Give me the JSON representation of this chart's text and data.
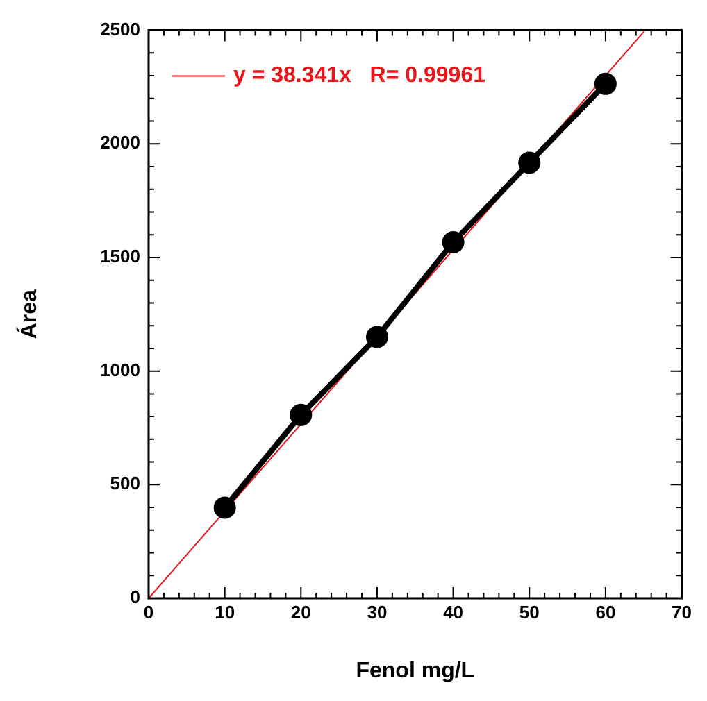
{
  "chart_data": {
    "type": "line",
    "xlabel": "Fenol mg/L",
    "ylabel": "Área",
    "x": [
      10,
      20,
      30,
      40,
      50,
      60
    ],
    "series": [
      {
        "values": [
          399,
          807,
          1150,
          1567,
          1917,
          2264
        ],
        "color": "#000000",
        "marker": "circle"
      },
      {
        "name": "y = 38.341x   R= 0.99961",
        "x": [
          0,
          65.2
        ],
        "values": [
          0,
          2500
        ],
        "color": "#e8161b",
        "marker": "none"
      }
    ],
    "xlim": [
      0,
      70
    ],
    "xticks": [
      0,
      {
        "value": 2,
        "label": null
      },
      {
        "value": 4,
        "label": null
      },
      {
        "value": 6,
        "label": null
      },
      {
        "value": 8,
        "label": null
      },
      10,
      {
        "value": 12,
        "label": null
      },
      {
        "value": 14,
        "label": null
      },
      {
        "value": 16,
        "label": null
      },
      {
        "value": 18,
        "label": null
      },
      20,
      {
        "value": 22,
        "label": null
      },
      {
        "value": 24,
        "label": null
      },
      {
        "value": 26,
        "label": null
      },
      {
        "value": 28,
        "label": null
      },
      30,
      {
        "value": 32,
        "label": null
      },
      {
        "value": 34,
        "label": null
      },
      {
        "value": 36,
        "label": null
      },
      {
        "value": 38,
        "label": null
      },
      40,
      {
        "value": 42,
        "label": null
      },
      {
        "value": 44,
        "label": null
      },
      {
        "value": 46,
        "label": null
      },
      {
        "value": 48,
        "label": null
      },
      50,
      {
        "value": 52,
        "label": null
      },
      {
        "value": 54,
        "label": null
      },
      {
        "value": 56,
        "label": null
      },
      {
        "value": 58,
        "label": null
      },
      60,
      {
        "value": 62,
        "label": null
      },
      {
        "value": 64,
        "label": null
      },
      {
        "value": 66,
        "label": null
      },
      {
        "value": 68,
        "label": null
      },
      70
    ],
    "ylim": [
      0,
      2500
    ],
    "yticks": [
      0,
      {
        "value": 100,
        "label": null
      },
      {
        "value": 200,
        "label": null
      },
      {
        "value": 300,
        "label": null
      },
      {
        "value": 400,
        "label": null
      },
      500,
      {
        "value": 600,
        "label": null
      },
      {
        "value": 700,
        "label": null
      },
      {
        "value": 800,
        "label": null
      },
      {
        "value": 900,
        "label": null
      },
      1000,
      {
        "value": 1100,
        "label": null
      },
      {
        "value": 1200,
        "label": null
      },
      {
        "value": 1300,
        "label": null
      },
      {
        "value": 1400,
        "label": null
      },
      1500,
      {
        "value": 1600,
        "label": null
      },
      {
        "value": 1700,
        "label": null
      },
      {
        "value": 1800,
        "label": null
      },
      {
        "value": 1900,
        "label": null
      },
      2000,
      {
        "value": 2100,
        "label": null
      },
      {
        "value": 2200,
        "label": null
      },
      {
        "value": 2300,
        "label": null
      },
      {
        "value": 2400,
        "label": null
      },
      2500
    ],
    "grid": false,
    "legend": "top left"
  }
}
